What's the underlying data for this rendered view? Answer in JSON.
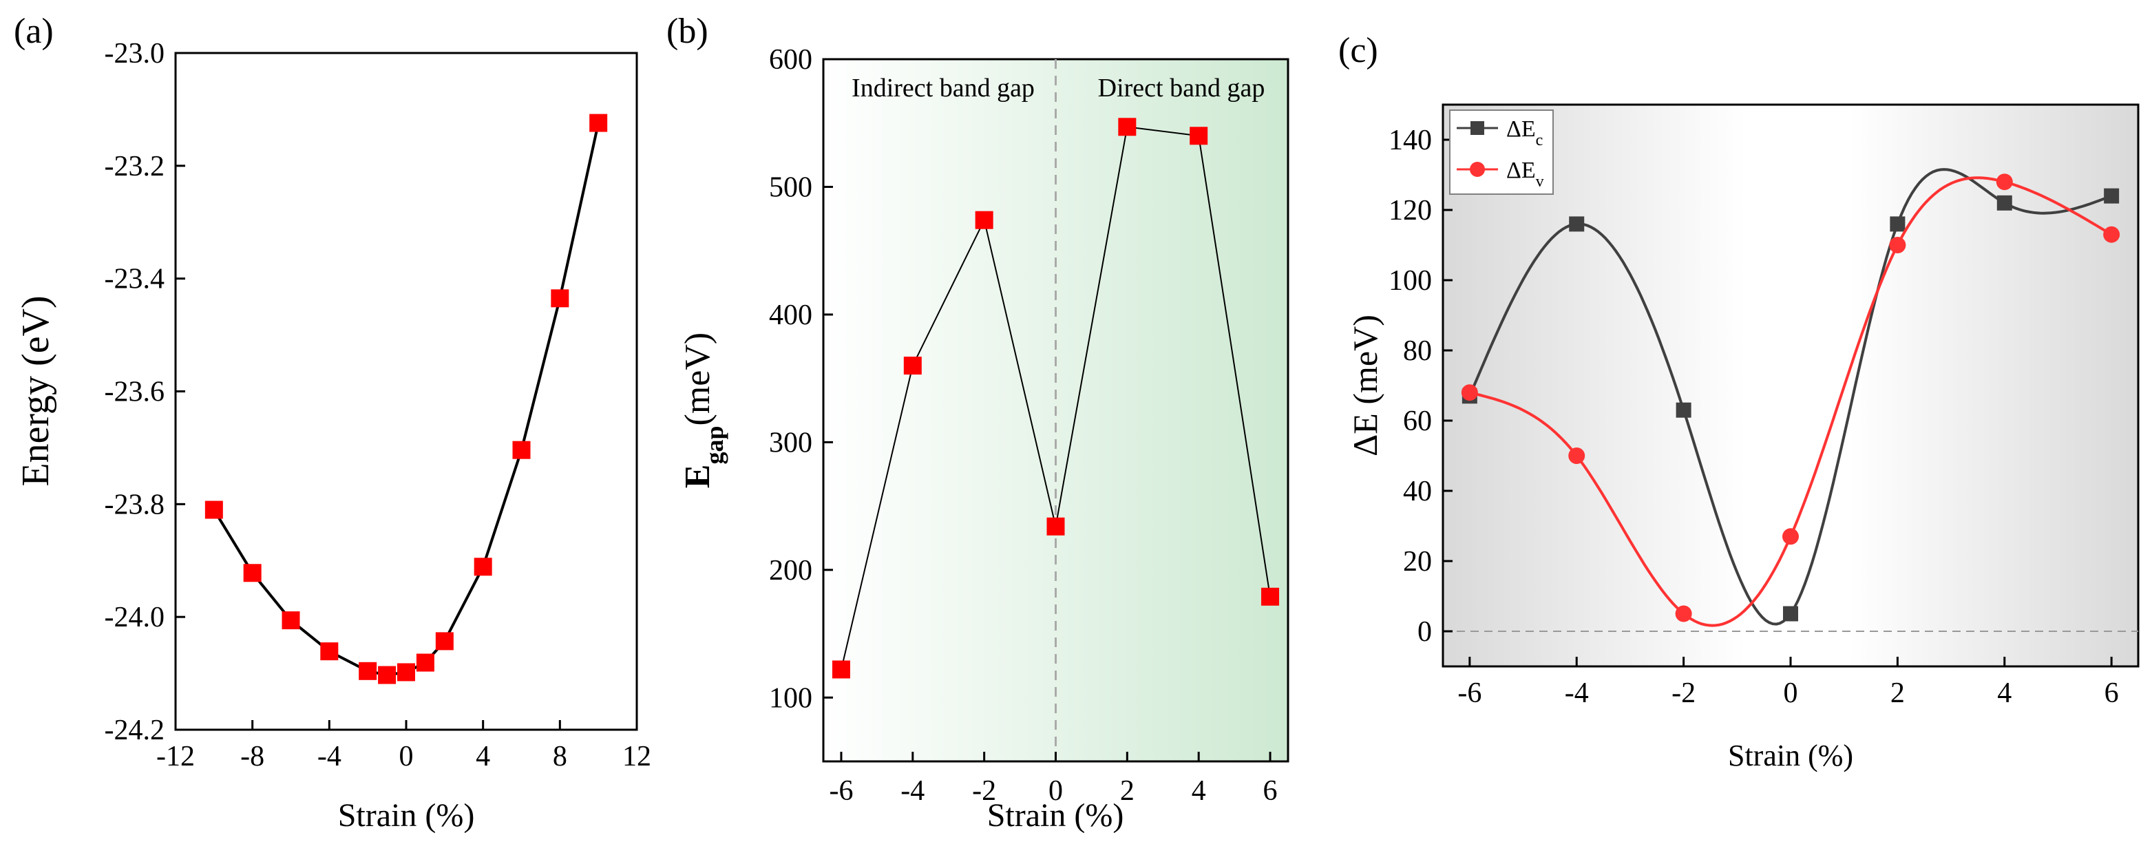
{
  "chart_data": [
    {
      "panel": "(a)",
      "type": "line",
      "xlabel": "Strain (%)",
      "ylabel": "Energy (eV)",
      "xlim": [
        -12,
        12
      ],
      "ylim": [
        -24.2,
        -23.0
      ],
      "xticks": [
        -12,
        -8,
        -4,
        0,
        4,
        8,
        12
      ],
      "xtick_labels": [
        "-12",
        "-8",
        "-4",
        "0",
        "4",
        "8",
        "12"
      ],
      "yticks": [
        -24.2,
        -24.0,
        -23.8,
        -23.6,
        -23.4,
        -23.2,
        -23.0
      ],
      "ytick_labels": [
        "-24.2",
        "-24.0",
        "-23.8",
        "-23.6",
        "-23.4",
        "-23.2",
        "-23.0"
      ],
      "series": [
        {
          "name": "Energy",
          "color": "#ff0000",
          "line_color": "#000000",
          "marker": "square",
          "x": [
            -10,
            -8,
            -6,
            -4,
            -2,
            -1,
            0,
            1,
            2,
            4,
            6,
            8,
            10
          ],
          "y": [
            -23.81,
            -23.922,
            -24.006,
            -24.061,
            -24.096,
            -24.103,
            -24.098,
            -24.081,
            -24.043,
            -23.911,
            -23.704,
            -23.435,
            -23.124
          ]
        }
      ]
    },
    {
      "panel": "(b)",
      "type": "line",
      "xlabel": "Strain (%)",
      "ylabel_main": "E",
      "ylabel_sub": "gap",
      "ylabel_unit": "(meV)",
      "xlim": [
        -6.5,
        6.5
      ],
      "ylim": [
        50,
        600
      ],
      "xticks": [
        -6,
        -4,
        -2,
        0,
        2,
        4,
        6
      ],
      "xtick_labels": [
        "-6",
        "-4",
        "-2",
        "0",
        "2",
        "4",
        "6"
      ],
      "yticks": [
        100,
        200,
        300,
        400,
        500,
        600
      ],
      "ytick_labels": [
        "100",
        "200",
        "300",
        "400",
        "500",
        "600"
      ],
      "regions": [
        {
          "label": "Indirect band gap",
          "from": -6.5,
          "to": 0
        },
        {
          "label": "Direct band gap",
          "from": 0,
          "to": 6.5
        }
      ],
      "gradient_color": "#cde9d2",
      "divider_x": 0,
      "series": [
        {
          "name": "Egap",
          "color": "#ff0000",
          "line_color": "#000000",
          "marker": "square",
          "x": [
            -6,
            -4,
            -2,
            0,
            2,
            4,
            6
          ],
          "y": [
            122,
            360,
            474,
            234,
            547,
            540,
            179
          ]
        }
      ]
    },
    {
      "panel": "(c)",
      "type": "line",
      "xlabel": "Strain (%)",
      "ylabel": "ΔE (meV)",
      "xlim": [
        -6.5,
        6.5
      ],
      "ylim": [
        -10,
        150
      ],
      "xticks": [
        -6,
        -4,
        -2,
        0,
        2,
        4,
        6
      ],
      "xtick_labels": [
        "-6",
        "-4",
        "-2",
        "0",
        "2",
        "4",
        "6"
      ],
      "yticks": [
        0,
        20,
        40,
        60,
        80,
        100,
        120,
        140
      ],
      "ytick_labels": [
        "0",
        "20",
        "40",
        "60",
        "80",
        "100",
        "120",
        "140"
      ],
      "zero_line": 0,
      "legend_position": "top-left",
      "series": [
        {
          "name": "ΔEc",
          "label_main": "ΔE",
          "label_sub": "c",
          "color": "#404040",
          "marker": "square",
          "x": [
            -6,
            -4,
            -2,
            0,
            2,
            4,
            6
          ],
          "y": [
            67,
            116,
            63,
            5,
            116,
            122,
            124
          ]
        },
        {
          "name": "ΔEv",
          "label_main": "ΔE",
          "label_sub": "v",
          "color": "#ff3333",
          "marker": "circle",
          "x": [
            -6,
            -4,
            -2,
            0,
            2,
            4,
            6
          ],
          "y": [
            68,
            50,
            5,
            27,
            110,
            128,
            113
          ]
        }
      ]
    }
  ]
}
